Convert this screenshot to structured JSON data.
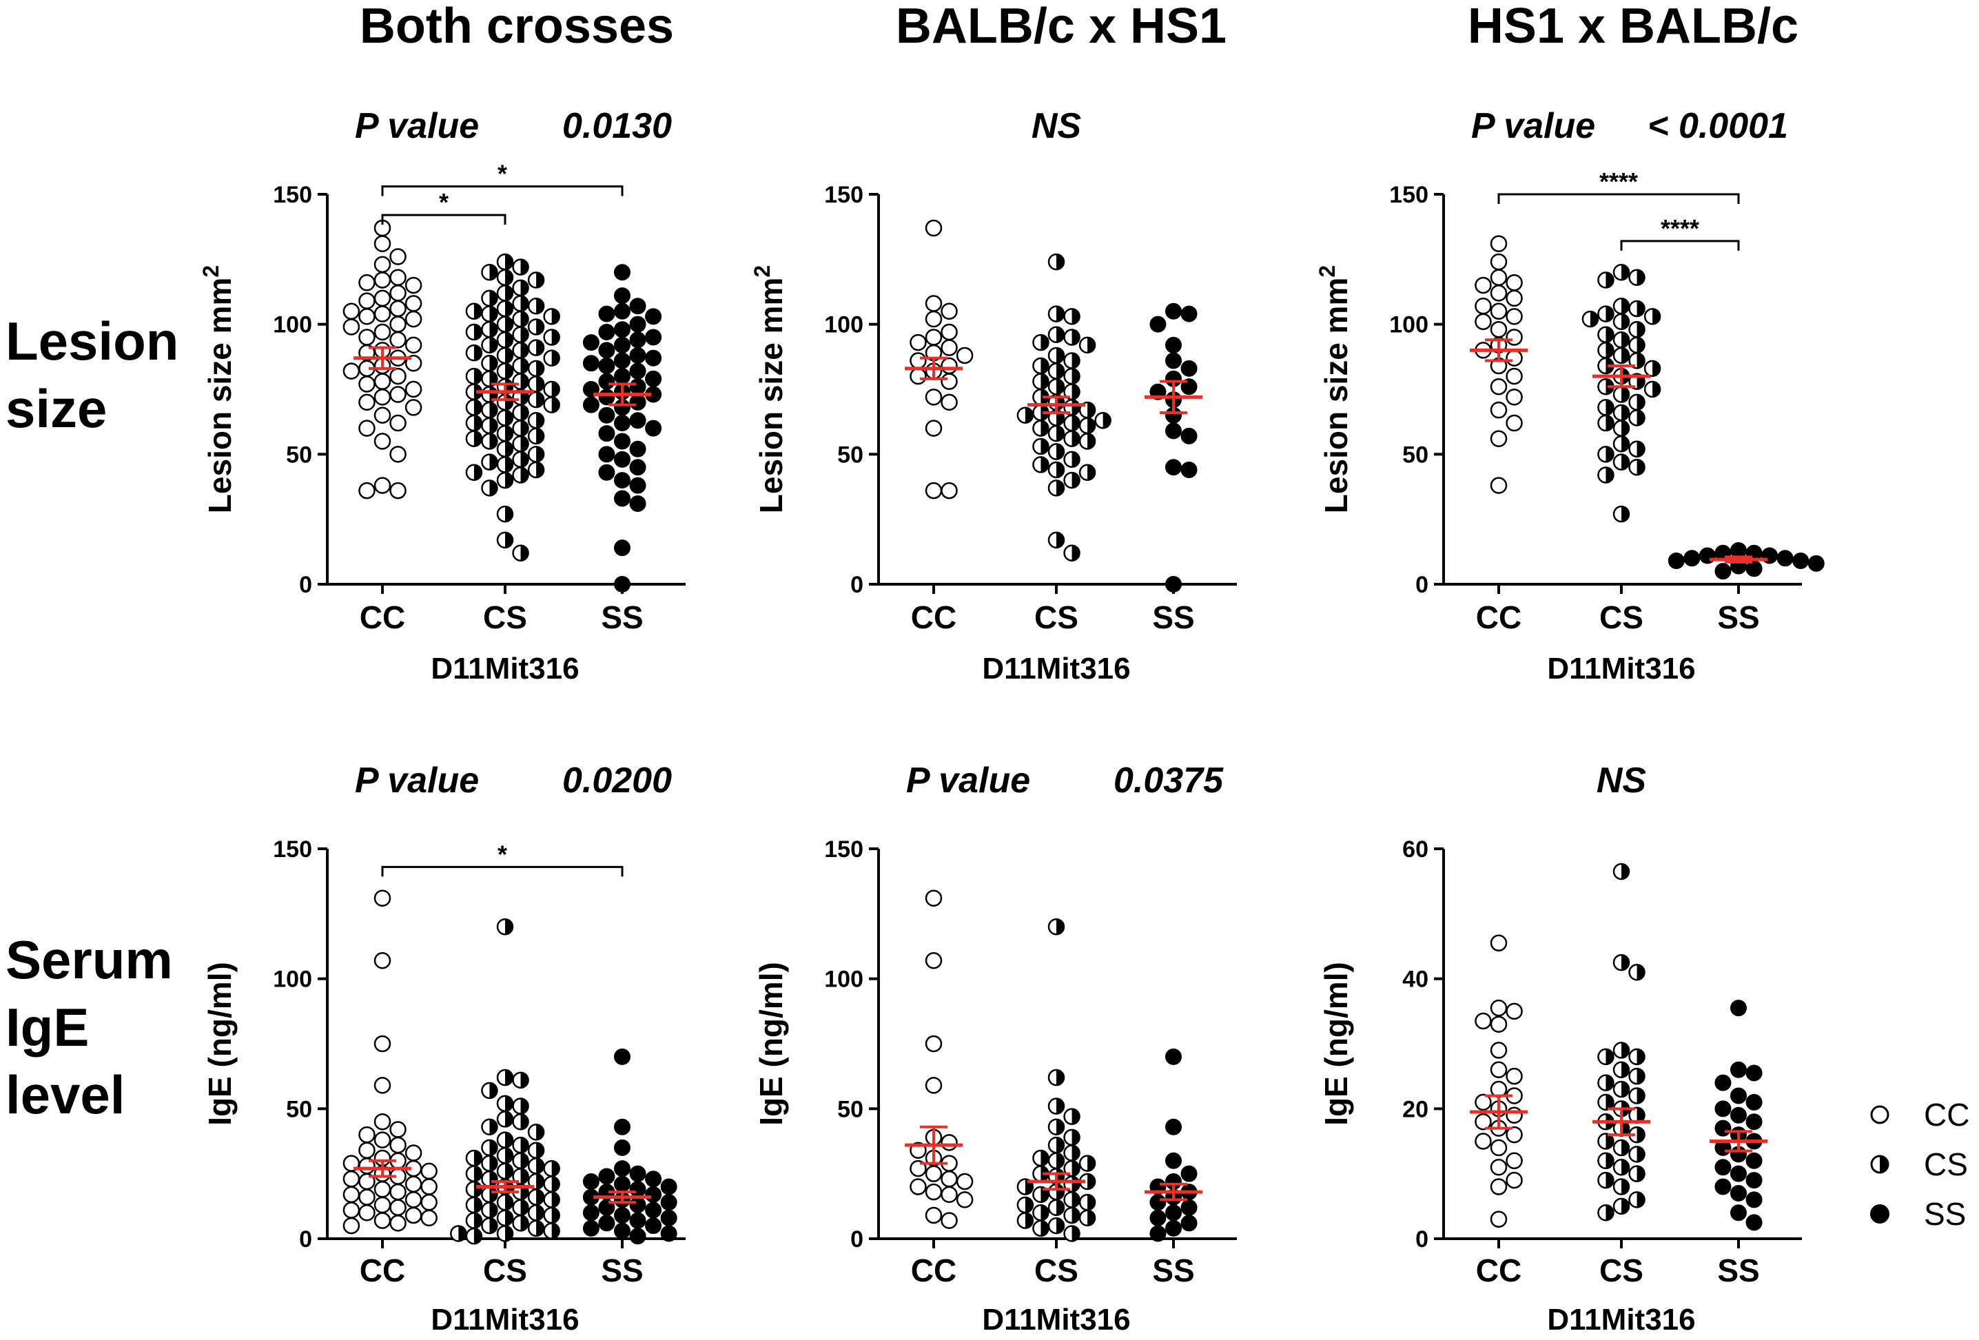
{
  "column_titles": [
    "Both crosses",
    "BALB/c x HS1",
    "HS1 x BALB/c"
  ],
  "row_labels": [
    [
      "Lesion",
      "size"
    ],
    [
      "Serum",
      "IgE",
      "level"
    ]
  ],
  "colors": {
    "mean_bar": "#e8302a",
    "axis": "#000000",
    "open_marker_fill": "#ffffff",
    "filled_marker": "#000000"
  },
  "legend": [
    {
      "label": "CC",
      "marker": "open-circle"
    },
    {
      "label": "CS",
      "marker": "half-filled-circle"
    },
    {
      "label": "SS",
      "marker": "filled-circle"
    }
  ],
  "chart_data": [
    {
      "type": "scatter",
      "row": 0,
      "col": 0,
      "pvalue_label": "P value",
      "pvalue": "0.0130",
      "ylabel": "Lesion size mm",
      "ylabel_sup": "2",
      "xlabel": "D11Mit316",
      "ylim": [
        0,
        150
      ],
      "yticks": [
        "0",
        "50",
        "100",
        "150"
      ],
      "ytick_values": [
        0,
        50,
        100,
        150
      ],
      "categories": [
        "CC",
        "CS",
        "SS"
      ],
      "groups": [
        {
          "name": "CC",
          "mean": 87,
          "sem": 4,
          "values": [
            137,
            131,
            126,
            123,
            118,
            117,
            116,
            115,
            112,
            110,
            109,
            108,
            106,
            105,
            104,
            103,
            102,
            100,
            99,
            97,
            95,
            94,
            92,
            90,
            89,
            87,
            85,
            84,
            83,
            82,
            80,
            78,
            77,
            75,
            73,
            72,
            70,
            68,
            65,
            62,
            60,
            55,
            50,
            38,
            36,
            36
          ]
        },
        {
          "name": "CS",
          "mean": 74,
          "sem": 3,
          "values": [
            124,
            122,
            120,
            118,
            117,
            114,
            112,
            110,
            108,
            107,
            106,
            105,
            104,
            103,
            102,
            100,
            99,
            98,
            97,
            96,
            95,
            94,
            92,
            91,
            90,
            89,
            88,
            87,
            85,
            84,
            83,
            82,
            80,
            79,
            78,
            77,
            76,
            75,
            74,
            73,
            72,
            71,
            70,
            69,
            68,
            67,
            66,
            64,
            63,
            62,
            61,
            60,
            58,
            57,
            56,
            55,
            54,
            52,
            50,
            48,
            47,
            46,
            44,
            43,
            42,
            40,
            37,
            27,
            17,
            12
          ]
        },
        {
          "name": "SS",
          "mean": 73,
          "sem": 4,
          "values": [
            120,
            111,
            107,
            105,
            104,
            103,
            100,
            98,
            97,
            95,
            94,
            93,
            92,
            90,
            88,
            87,
            86,
            85,
            84,
            82,
            80,
            79,
            78,
            76,
            75,
            74,
            73,
            72,
            70,
            69,
            68,
            65,
            63,
            62,
            60,
            58,
            55,
            52,
            50,
            48,
            45,
            43,
            40,
            38,
            33,
            31,
            14,
            0
          ]
        }
      ],
      "comparisons": [
        {
          "from": "CC",
          "to": "CS",
          "label": "*",
          "level": 142
        },
        {
          "from": "CC",
          "to": "SS",
          "label": "*",
          "level": 153
        }
      ]
    },
    {
      "type": "scatter",
      "row": 0,
      "col": 1,
      "pvalue_label": "NS",
      "pvalue": "",
      "ylabel": "Lesion size mm",
      "ylabel_sup": "2",
      "xlabel": "D11Mit316",
      "ylim": [
        0,
        150
      ],
      "yticks": [
        "0",
        "50",
        "100",
        "150"
      ],
      "ytick_values": [
        0,
        50,
        100,
        150
      ],
      "categories": [
        "CC",
        "CS",
        "SS"
      ],
      "groups": [
        {
          "name": "CC",
          "mean": 83,
          "sem": 4,
          "values": [
            137,
            108,
            105,
            102,
            97,
            95,
            93,
            91,
            89,
            88,
            86,
            84,
            82,
            80,
            78,
            72,
            70,
            60,
            36,
            36
          ]
        },
        {
          "name": "CS",
          "mean": 69,
          "sem": 3,
          "values": [
            124,
            104,
            103,
            96,
            95,
            93,
            92,
            88,
            86,
            84,
            82,
            80,
            78,
            76,
            74,
            72,
            70,
            68,
            67,
            66,
            65,
            64,
            63,
            62,
            61,
            60,
            58,
            56,
            55,
            53,
            51,
            48,
            46,
            44,
            43,
            40,
            37,
            17,
            12
          ]
        },
        {
          "name": "SS",
          "mean": 72,
          "sem": 6,
          "values": [
            105,
            104,
            100,
            92,
            86,
            83,
            79,
            76,
            74,
            71,
            65,
            59,
            57,
            45,
            44,
            0
          ]
        }
      ],
      "comparisons": []
    },
    {
      "type": "scatter",
      "row": 0,
      "col": 2,
      "pvalue_label": "P value",
      "pvalue": "< 0.0001",
      "ylabel": "Lesion size mm",
      "ylabel_sup": "2",
      "xlabel": "D11Mit316",
      "ylim": [
        0,
        150
      ],
      "yticks": [
        "0",
        "50",
        "100",
        "150"
      ],
      "ytick_values": [
        0,
        50,
        100,
        150
      ],
      "categories": [
        "CC",
        "CS",
        "SS"
      ],
      "groups": [
        {
          "name": "CC",
          "mean": 90,
          "sem": 4,
          "values": [
            131,
            124,
            118,
            116,
            115,
            112,
            110,
            107,
            105,
            103,
            101,
            98,
            95,
            92,
            90,
            87,
            84,
            80,
            76,
            72,
            67,
            62,
            56,
            38
          ]
        },
        {
          "name": "CS",
          "mean": 80,
          "sem": 4,
          "values": [
            120,
            118,
            117,
            107,
            106,
            104,
            103,
            102,
            101,
            98,
            96,
            94,
            92,
            90,
            88,
            86,
            84,
            83,
            80,
            78,
            76,
            75,
            73,
            70,
            68,
            66,
            64,
            62,
            60,
            54,
            52,
            50,
            47,
            45,
            42,
            27
          ]
        },
        {
          "name": "SS",
          "mean": 9.5,
          "sem": 1,
          "values": [
            13,
            12,
            12,
            11,
            11,
            10,
            10,
            9,
            9,
            8,
            7,
            6,
            5
          ]
        }
      ],
      "comparisons": [
        {
          "from": "CC",
          "to": "SS",
          "label": "****",
          "level": 150
        },
        {
          "from": "CS",
          "to": "SS",
          "label": "****",
          "level": 132
        }
      ]
    },
    {
      "type": "scatter",
      "row": 1,
      "col": 0,
      "pvalue_label": "P value",
      "pvalue": "0.0200",
      "ylabel": "IgE (ng/ml)",
      "ylabel_sup": "",
      "xlabel": "D11Mit316",
      "ylim": [
        0,
        150
      ],
      "yticks": [
        "0",
        "50",
        "100",
        "150"
      ],
      "ytick_values": [
        0,
        50,
        100,
        150
      ],
      "categories": [
        "CC",
        "CS",
        "SS"
      ],
      "groups": [
        {
          "name": "CC",
          "mean": 27,
          "sem": 3,
          "values": [
            131,
            107,
            75,
            59,
            45,
            42,
            40,
            38,
            36,
            34,
            33,
            31,
            30,
            29,
            28,
            27,
            26,
            25,
            24,
            23,
            22,
            21,
            20,
            19,
            18,
            17,
            16,
            15,
            14,
            13,
            12,
            11,
            10,
            9,
            8,
            7,
            6,
            5
          ]
        },
        {
          "name": "CS",
          "mean": 20,
          "sem": 2,
          "values": [
            120,
            62,
            61,
            57,
            52,
            51,
            46,
            45,
            43,
            41,
            38,
            36,
            35,
            34,
            32,
            31,
            30,
            29,
            28,
            27,
            26,
            25,
            24,
            23,
            22,
            21,
            20,
            19,
            18,
            17,
            16,
            15,
            14,
            13,
            12,
            11,
            10,
            9,
            8,
            7,
            6,
            5,
            4,
            3,
            2,
            2,
            1
          ]
        },
        {
          "name": "SS",
          "mean": 16,
          "sem": 2,
          "values": [
            70,
            43,
            35,
            27,
            25,
            24,
            23,
            22,
            21,
            20,
            19,
            18,
            17,
            16,
            15,
            14,
            13,
            12,
            11,
            10,
            9,
            8,
            7,
            6,
            5,
            4,
            3,
            2,
            1
          ]
        }
      ],
      "comparisons": [
        {
          "from": "CC",
          "to": "SS",
          "label": "*",
          "level": 143
        }
      ]
    },
    {
      "type": "scatter",
      "row": 1,
      "col": 1,
      "pvalue_label": "P value",
      "pvalue": "0.0375",
      "ylabel": "IgE (ng/ml)",
      "ylabel_sup": "",
      "xlabel": "D11Mit316",
      "ylim": [
        0,
        150
      ],
      "yticks": [
        "0",
        "50",
        "100",
        "150"
      ],
      "ytick_values": [
        0,
        50,
        100,
        150
      ],
      "categories": [
        "CC",
        "CS",
        "SS"
      ],
      "groups": [
        {
          "name": "CC",
          "mean": 36,
          "sem": 7,
          "values": [
            131,
            107,
            75,
            59,
            39,
            37,
            34,
            31,
            29,
            27,
            25,
            23,
            22,
            20,
            18,
            17,
            15,
            9,
            7
          ]
        },
        {
          "name": "CS",
          "mean": 22,
          "sem": 3,
          "values": [
            120,
            62,
            51,
            47,
            43,
            39,
            36,
            33,
            31,
            30,
            29,
            27,
            25,
            24,
            22,
            21,
            20,
            18,
            17,
            15,
            14,
            13,
            12,
            10,
            9,
            8,
            7,
            5,
            4,
            2
          ]
        },
        {
          "name": "SS",
          "mean": 18,
          "sem": 3,
          "values": [
            70,
            43,
            30,
            25,
            22,
            20,
            18,
            16,
            14,
            12,
            10,
            8,
            6,
            4,
            2
          ]
        }
      ],
      "comparisons": []
    },
    {
      "type": "scatter",
      "row": 1,
      "col": 2,
      "pvalue_label": "NS",
      "pvalue": "",
      "ylabel": "IgE (ng/ml)",
      "ylabel_sup": "",
      "xlabel": "D11Mit316",
      "ylim": [
        0,
        60
      ],
      "yticks": [
        "0",
        "20",
        "40",
        "60"
      ],
      "ytick_values": [
        0,
        20,
        40,
        60
      ],
      "categories": [
        "CC",
        "CS",
        "SS"
      ],
      "groups": [
        {
          "name": "CC",
          "mean": 19.5,
          "sem": 2.5,
          "values": [
            45.5,
            35.5,
            35,
            33.5,
            33,
            29,
            26,
            25,
            23,
            22,
            21,
            20,
            19,
            18,
            17,
            16,
            15,
            14,
            12,
            11,
            9,
            8,
            3
          ]
        },
        {
          "name": "CS",
          "mean": 18,
          "sem": 2,
          "values": [
            56.5,
            42.5,
            41,
            29,
            28,
            28,
            26,
            25,
            24,
            23,
            22,
            21,
            20,
            19,
            18,
            17,
            16,
            15,
            14,
            13,
            12,
            11,
            10,
            9,
            8,
            6,
            5,
            4
          ]
        },
        {
          "name": "SS",
          "mean": 15,
          "sem": 1.5,
          "values": [
            35.5,
            26,
            25.5,
            24,
            22,
            21,
            20,
            19,
            18,
            17,
            16,
            15,
            14,
            13,
            12,
            11,
            10,
            9,
            8,
            7,
            6,
            4,
            2.5
          ]
        }
      ],
      "comparisons": []
    }
  ]
}
